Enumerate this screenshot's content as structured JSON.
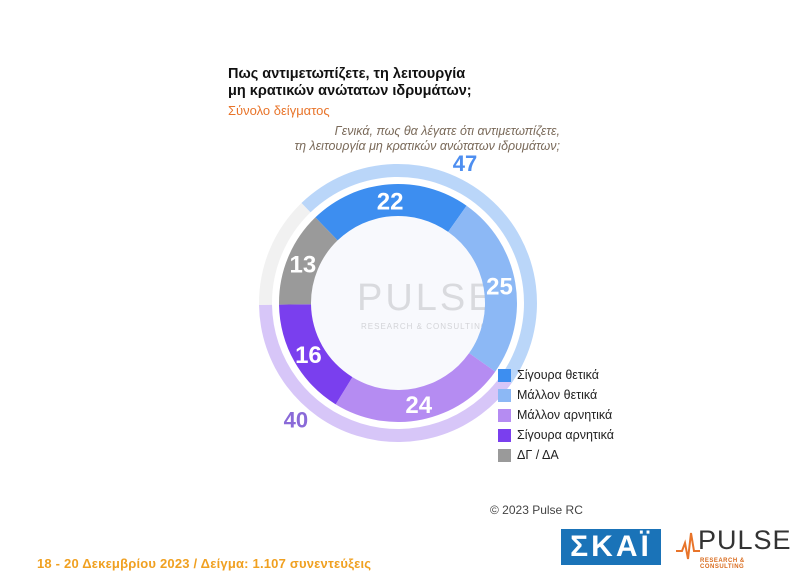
{
  "header": {
    "title_line1": "Πως αντιμετωπίζετε, τη λειτουργία",
    "title_line2": "μη κρατικών ανώτατων ιδρυμάτων;",
    "subtitle": "Σύνολο δείγματος",
    "question_line1": "Γενικά, πως θα λέγατε ότι αντιμετωπίζετε,",
    "question_line2": "τη λειτουργία μη κρατικών ανώτατων ιδρυμάτων;"
  },
  "chart_data": {
    "type": "pie",
    "categories": [
      "Σίγουρα θετικά",
      "Μάλλον θετικά",
      "Μάλλον αρνητικά",
      "Σίγουρα αρνητικά",
      "ΔΓ / ΔΑ"
    ],
    "values": [
      22,
      25,
      24,
      16,
      13
    ],
    "colors": [
      "#3d8ef0",
      "#8cb8f5",
      "#b58cf2",
      "#7a3fee",
      "#9a9a9a"
    ],
    "groups": [
      {
        "value": 47,
        "color": "#a9ccf7",
        "label_color": "#4d8ef0"
      },
      {
        "value": 40,
        "color": "#cdb8f6",
        "label_color": "#8a6ad8"
      },
      {
        "color": "#eeeeee"
      }
    ],
    "legend_position": "right"
  },
  "legend": [
    {
      "label": "Σίγουρα θετικά",
      "color": "#3d8ef0"
    },
    {
      "label": "Μάλλον θετικά",
      "color": "#8cb8f5"
    },
    {
      "label": "Μάλλον αρνητικά",
      "color": "#b58cf2"
    },
    {
      "label": "Σίγουρα αρνητικά",
      "color": "#7a3fee"
    },
    {
      "label": "ΔΓ / ΔΑ",
      "color": "#9a9a9a"
    }
  ],
  "watermark": {
    "word": "PULSE",
    "sub": "RESEARCH & CONSULTING"
  },
  "copyright": "© 2023 Pulse RC",
  "footer": {
    "date_sample": "18 - 20 Δεκεμβρίου 2023 / Δείγμα: 1.107 συνεντεύξεις"
  },
  "logos": {
    "skai": "ΣΚΑΪ",
    "pulse": "PULSE",
    "pulse_sub": "RESEARCH & CONSULTING"
  }
}
